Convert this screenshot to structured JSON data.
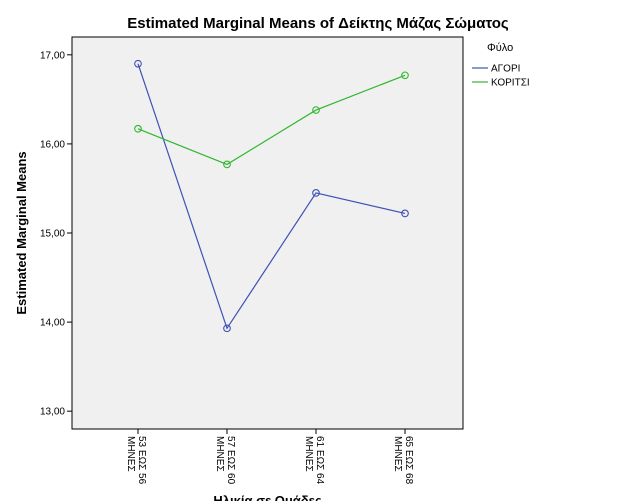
{
  "chart_data": {
    "type": "line",
    "title": "Estimated Marginal Means of Δείκτης Μάζας Σώματος",
    "xlabel": "Ηλικία σε Ομάδες",
    "ylabel": "Estimated Marginal Means",
    "categories": [
      "53 ΕΩΣ 56 ΜΗΝΕΣ",
      "57 ΕΩΣ 60 ΜΗΝΕΣ",
      "61 ΕΩΣ 64 ΜΗΝΕΣ",
      "65 ΕΩΣ 68 ΜΗΝΕΣ"
    ],
    "category_lines": [
      [
        "53 ΕΩΣ 56",
        "ΜΗΝΕΣ"
      ],
      [
        "57 ΕΩΣ 60",
        "ΜΗΝΕΣ"
      ],
      [
        "61 ΕΩΣ 64",
        "ΜΗΝΕΣ"
      ],
      [
        "65 ΕΩΣ 68",
        "ΜΗΝΕΣ"
      ]
    ],
    "ylim": [
      12.8,
      17.2
    ],
    "yticks": [
      13,
      14,
      15,
      16,
      17
    ],
    "ytick_labels": [
      "13,00",
      "14,00",
      "15,00",
      "16,00",
      "17,00"
    ],
    "legend_title": "Φύλο",
    "legend_position": "right",
    "grid": false,
    "series": [
      {
        "name": "ΑΓΟΡΙ",
        "color": "#3f51b5",
        "values": [
          16.9,
          13.93,
          15.45,
          15.22
        ]
      },
      {
        "name": "ΚΟΡΙΤΣΙ",
        "color": "#2eb82e",
        "values": [
          16.17,
          15.77,
          16.38,
          16.77
        ]
      }
    ],
    "plot_background": "#f0f0f0"
  }
}
